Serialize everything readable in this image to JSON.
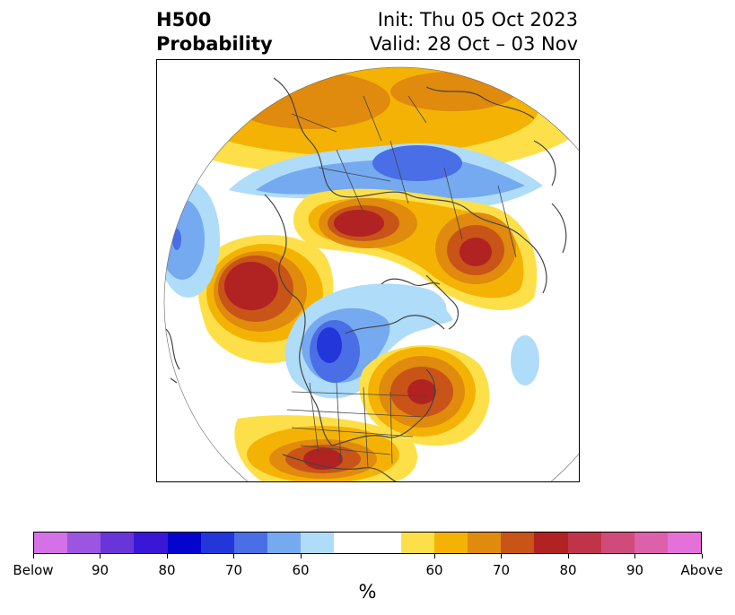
{
  "header": {
    "title_line1": "H500",
    "title_line2": "Probability",
    "init_text": "Init: Thu 05 Oct 2023",
    "valid_text": "Valid: 28 Oct – 03 Nov"
  },
  "colorbar": {
    "colors": [
      "#d471e6",
      "#9b55e0",
      "#6a35d8",
      "#3a17d6",
      "#0404cc",
      "#2336da",
      "#4a6ee6",
      "#75aaf0",
      "#aedcf9",
      "#ffffff",
      "#ffffff",
      "#fde049",
      "#f4b304",
      "#e08a0e",
      "#c85418",
      "#b12223",
      "#c13348",
      "#cf4c7a",
      "#dc60aa",
      "#e670d9"
    ],
    "labels": [
      "Below",
      "90",
      "80",
      "70",
      "60",
      "60",
      "70",
      "80",
      "90",
      "Above"
    ],
    "unit": "%"
  },
  "map": {
    "projection": "polar-stereographic-north",
    "palette": {
      "blue1": "#aedcf9",
      "blue2": "#75aaf0",
      "blue3": "#4a6ee6",
      "blue4": "#2336da",
      "orange1": "#fde049",
      "orange2": "#f4b304",
      "orange3": "#e08a0e",
      "orange4": "#c85418",
      "orange5": "#b12223",
      "coast": "#444444"
    }
  }
}
